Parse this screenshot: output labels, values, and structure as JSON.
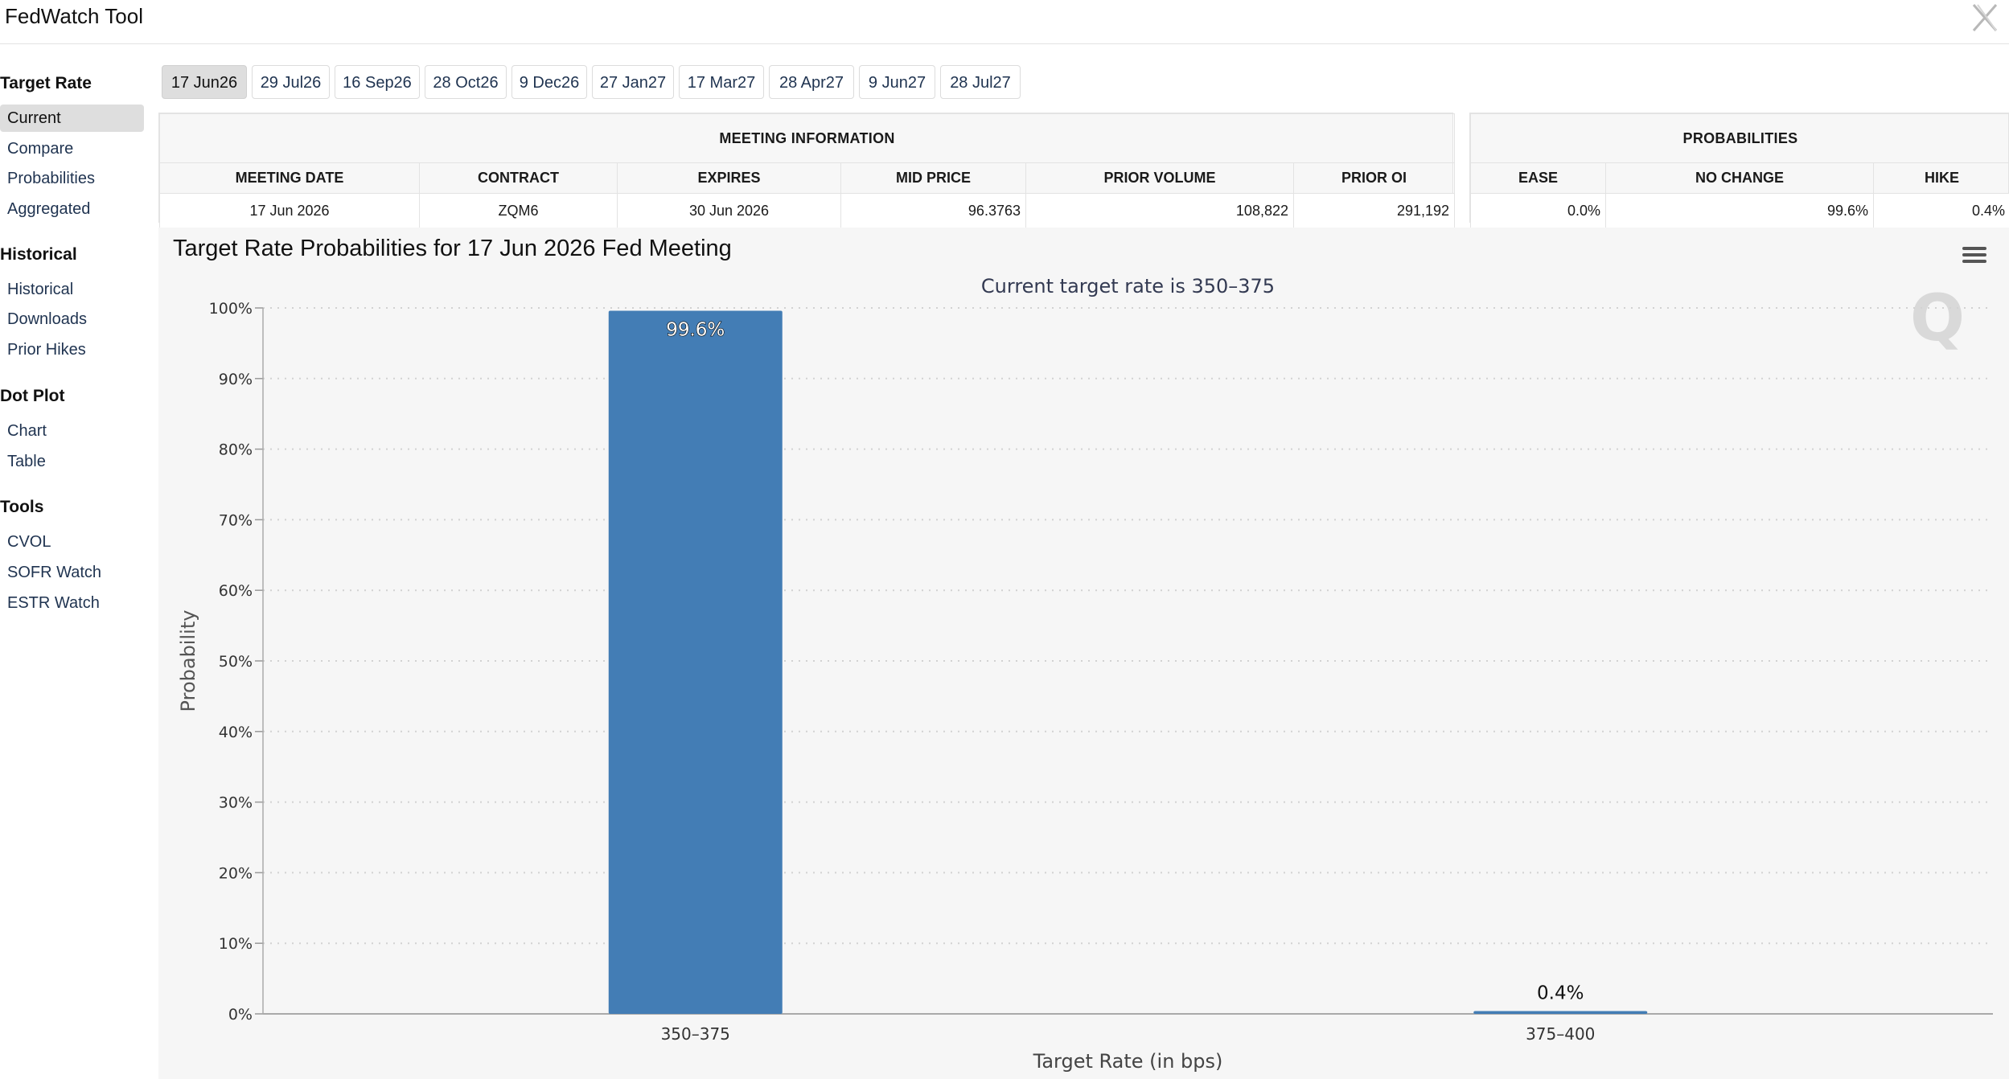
{
  "app": {
    "title": "FedWatch Tool",
    "close_icon": "close-x-icon"
  },
  "sidebar": {
    "sections": [
      {
        "heading": "Target Rate",
        "items": [
          {
            "label": "Current",
            "active": true
          },
          {
            "label": "Compare"
          },
          {
            "label": "Probabilities"
          },
          {
            "label": "Aggregated"
          }
        ]
      },
      {
        "heading": "Historical",
        "items": [
          {
            "label": "Historical"
          },
          {
            "label": "Downloads"
          },
          {
            "label": "Prior Hikes"
          }
        ]
      },
      {
        "heading": "Dot Plot",
        "items": [
          {
            "label": "Chart"
          },
          {
            "label": "Table"
          }
        ]
      },
      {
        "heading": "Tools",
        "items": [
          {
            "label": "CVOL"
          },
          {
            "label": "SOFR Watch"
          },
          {
            "label": "ESTR Watch"
          }
        ]
      }
    ]
  },
  "tabs": [
    "17 Jun26",
    "29 Jul26",
    "16 Sep26",
    "28 Oct26",
    "9 Dec26",
    "27 Jan27",
    "17 Mar27",
    "28 Apr27",
    "9 Jun27",
    "28 Jul27"
  ],
  "active_tab": "17 Jun26",
  "meeting_info": {
    "caption": "MEETING INFORMATION",
    "headers": [
      "MEETING DATE",
      "CONTRACT",
      "EXPIRES",
      "MID PRICE",
      "PRIOR VOLUME",
      "PRIOR OI"
    ],
    "row": [
      "17 Jun 2026",
      "ZQM6",
      "30 Jun 2026",
      "96.3763",
      "108,822",
      "291,192"
    ]
  },
  "probabilities": {
    "caption": "PROBABILITIES",
    "headers": [
      "EASE",
      "NO CHANGE",
      "HIKE"
    ],
    "row": [
      "0.0%",
      "99.6%",
      "0.4%"
    ]
  },
  "chart_panel": {
    "title": "Target Rate Probabilities for 17 Jun 2026 Fed Meeting",
    "menu_icon": "hamburger-menu-icon",
    "watermark": "Q"
  },
  "chart_data": {
    "type": "bar",
    "subtitle": "Current target rate is 350–375",
    "categories": [
      "350–375",
      "375–400"
    ],
    "values": [
      99.6,
      0.4
    ],
    "data_labels": [
      "99.6%",
      "0.4%"
    ],
    "xlabel": "Target Rate (in bps)",
    "ylabel": "Probability",
    "ylim": [
      0,
      100
    ],
    "yticks": [
      "0%",
      "10%",
      "20%",
      "30%",
      "40%",
      "50%",
      "60%",
      "70%",
      "80%",
      "90%",
      "100%"
    ],
    "grid": true,
    "bar_color": "#437db5"
  }
}
